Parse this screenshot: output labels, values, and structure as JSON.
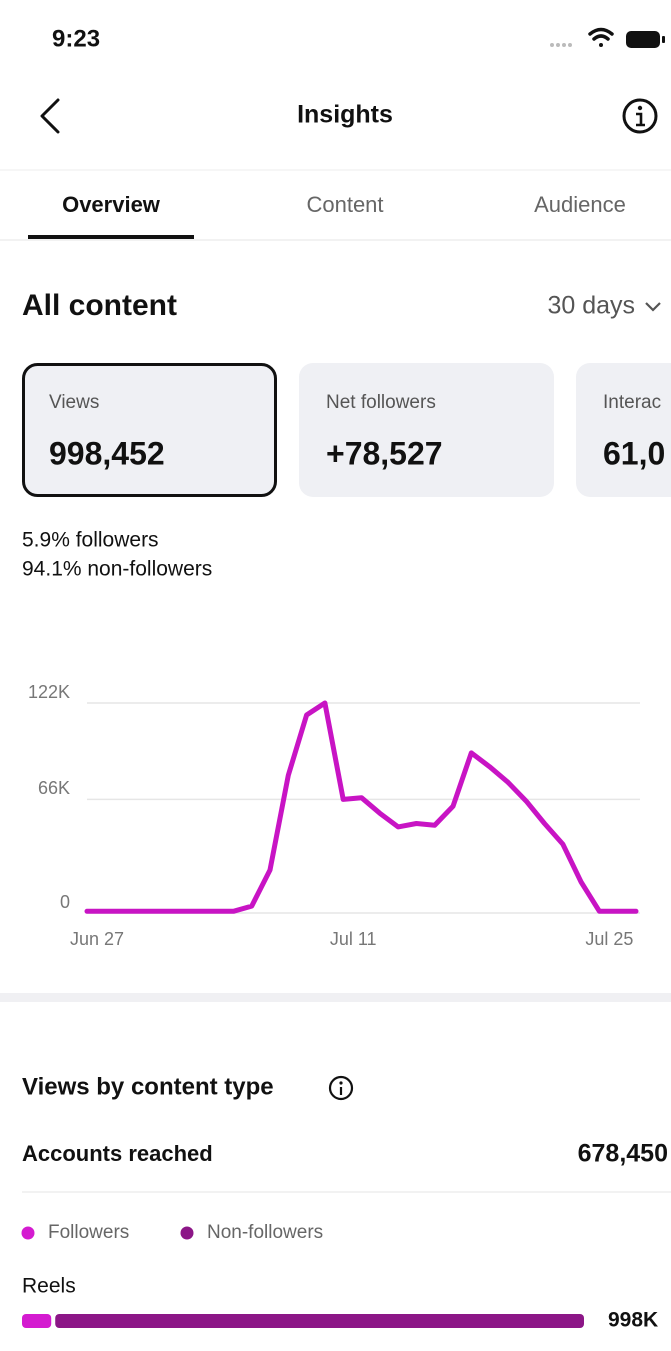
{
  "status_bar": {
    "time": "9:23"
  },
  "header": {
    "title": "Insights"
  },
  "tabs": [
    "Overview",
    "Content",
    "Audience"
  ],
  "section": {
    "title": "All content",
    "range": "30 days"
  },
  "cards": [
    {
      "label": "Views",
      "value": "998,452"
    },
    {
      "label": "Net followers",
      "value": "+78,527"
    },
    {
      "label": "Interac",
      "value": "61,0"
    }
  ],
  "breakdown": [
    "5.9% followers",
    "94.1% non-followers"
  ],
  "content_type": {
    "title": "Views by content type",
    "reached_label": "Accounts reached",
    "reached_value": "678,450"
  },
  "chart_data": [
    {
      "type": "line",
      "categories": [
        "Jun 27",
        null,
        null,
        null,
        null,
        null,
        null,
        null,
        null,
        null,
        null,
        null,
        null,
        null,
        "Jul 11",
        null,
        null,
        null,
        null,
        null,
        null,
        null,
        null,
        null,
        null,
        null,
        null,
        null,
        "Jul 25",
        null,
        null
      ],
      "values": [
        1,
        1,
        1,
        1,
        1,
        1,
        1,
        1,
        1,
        4,
        25,
        80,
        115,
        122,
        66,
        67,
        58,
        50,
        52,
        51,
        62,
        93,
        85,
        76,
        65,
        52,
        40,
        18,
        1,
        1,
        1
      ],
      "color": "#c814c4",
      "ylim": [
        0,
        122
      ],
      "yticks": [
        0,
        {
          "value": 66,
          "label": "66K"
        },
        {
          "value": 122,
          "label": "122K"
        }
      ],
      "grid": true
    },
    {
      "type": "bar",
      "orientation": "horizontal",
      "stacked": true,
      "categories": [
        "Reels"
      ],
      "series": [
        {
          "name": "Followers",
          "color": "#d41bd0",
          "values": [
            59
          ]
        },
        {
          "name": "Non-followers",
          "color": "#8c1687",
          "values": [
            939
          ]
        }
      ],
      "xlim": [
        0,
        998
      ],
      "total_label": "998K"
    }
  ]
}
